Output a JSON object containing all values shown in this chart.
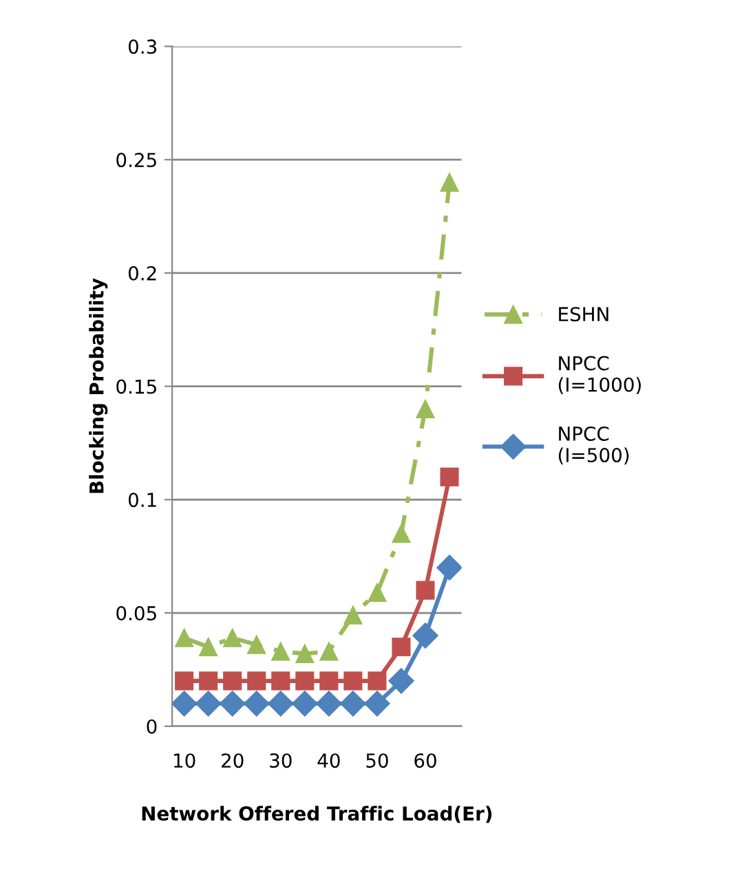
{
  "chart_data": {
    "type": "line",
    "xlabel": "Network Offered Traffic Load(Er)",
    "ylabel": "Blocking Probability",
    "categories": [
      "10",
      null,
      "20",
      null,
      "30",
      null,
      "40",
      null,
      "50",
      null,
      "60",
      null
    ],
    "series": [
      {
        "name": "ESHN",
        "color": "#9bbb59",
        "marker": "triangle",
        "line_style": "dashed",
        "values": [
          0.039,
          0.035,
          0.039,
          0.036,
          0.033,
          0.032,
          0.033,
          0.049,
          0.059,
          0.085,
          0.14,
          0.24
        ]
      },
      {
        "name": "NPCC\n(I=1000)",
        "color": "#c0504d",
        "marker": "square",
        "line_style": "solid",
        "values": [
          0.02,
          0.02,
          0.02,
          0.02,
          0.02,
          0.02,
          0.02,
          0.02,
          0.02,
          0.035,
          0.06,
          0.11
        ]
      },
      {
        "name": "NPCC\n(I=500)",
        "color": "#4f81bd",
        "marker": "diamond",
        "line_style": "solid",
        "values": [
          0.01,
          0.01,
          0.01,
          0.01,
          0.01,
          0.01,
          0.01,
          0.01,
          0.01,
          0.02,
          0.04,
          0.07
        ]
      }
    ],
    "ylim": [
      0,
      0.3
    ],
    "yticks": [
      0,
      0.05,
      0.1,
      0.15,
      0.2,
      0.25,
      0.3
    ],
    "grid": "y",
    "legend": "right"
  }
}
